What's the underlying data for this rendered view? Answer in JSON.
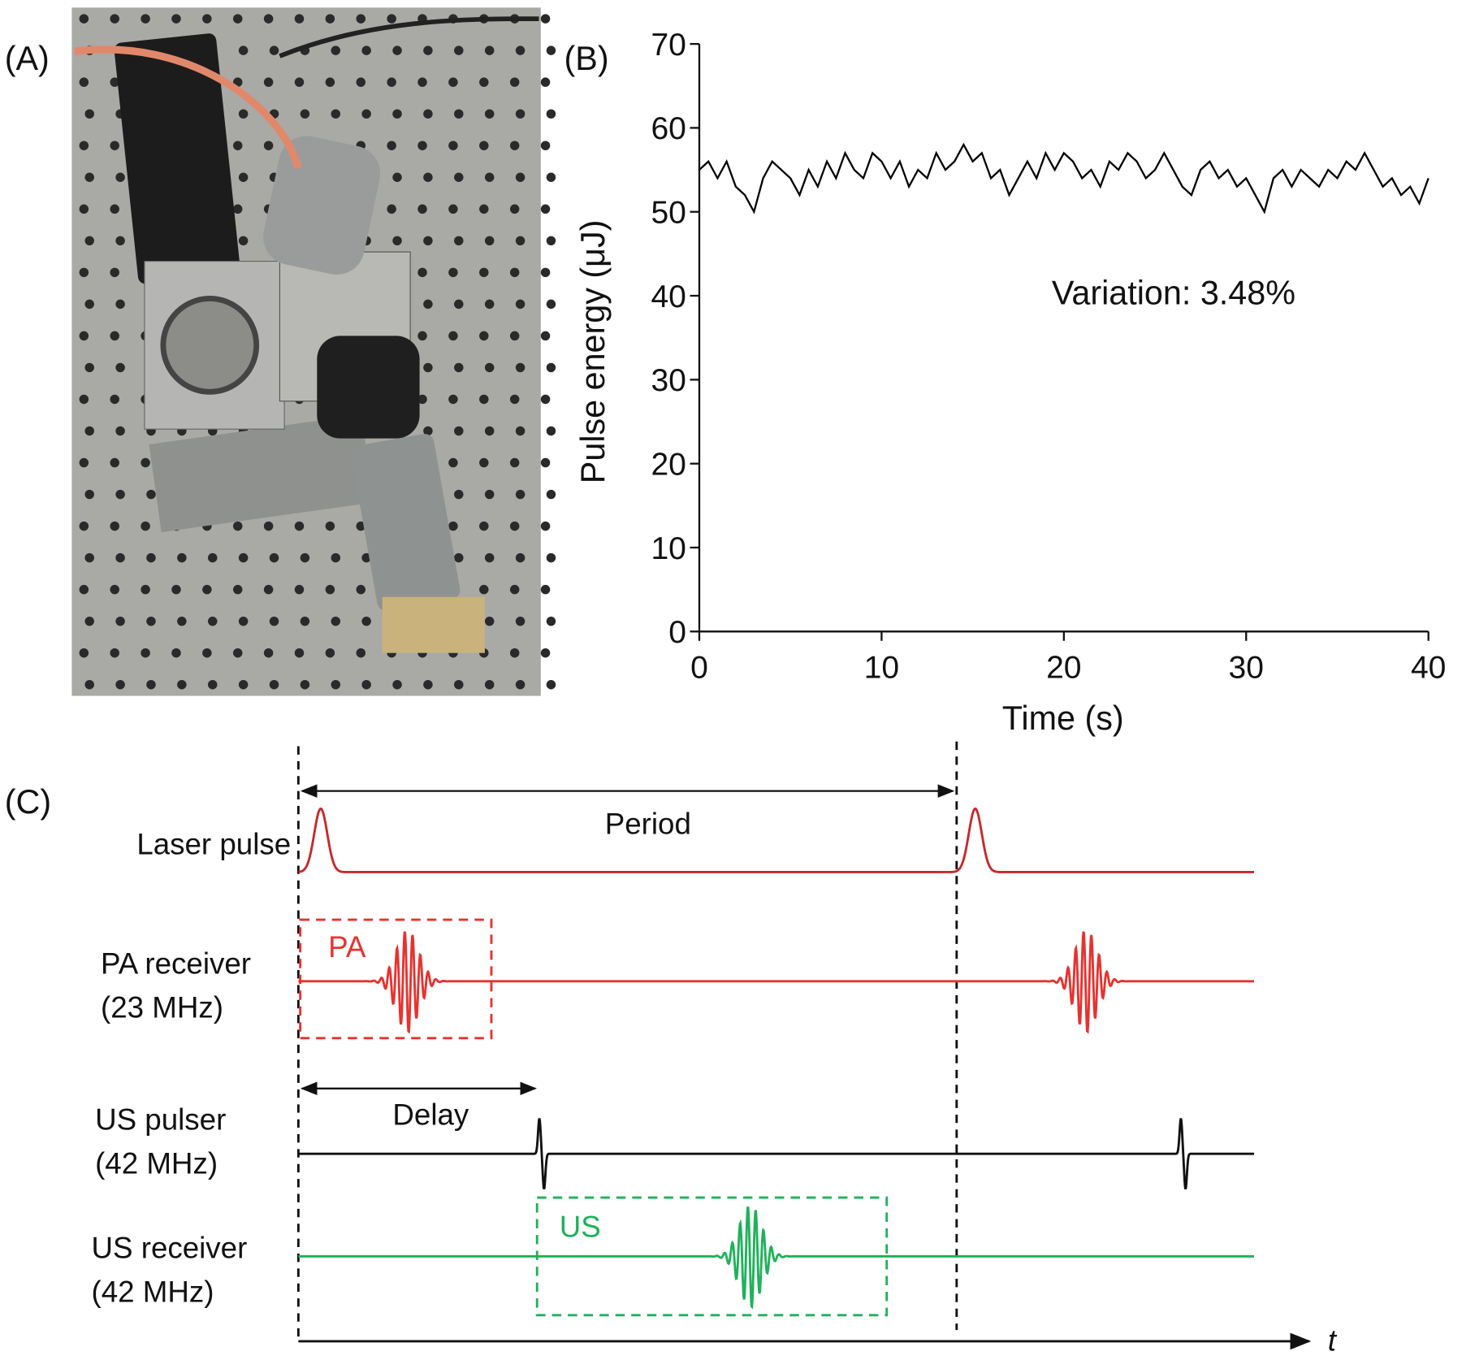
{
  "panels": {
    "a": "(A)",
    "b": "(B)",
    "c": "(C)"
  },
  "chart_data": {
    "type": "line",
    "y_label": "Pulse energy (μJ)",
    "x_label": "Time (s)",
    "annotation": "Variation: 3.48%",
    "color": "#000000",
    "xlim": [
      0,
      40
    ],
    "ylim": [
      0,
      70
    ],
    "xticks": [
      0,
      10,
      20,
      30,
      40
    ],
    "yticks": [
      0,
      10,
      20,
      30,
      40,
      50,
      60,
      70
    ],
    "x": [
      0,
      0.5,
      1,
      1.5,
      2,
      2.5,
      3,
      3.5,
      4,
      4.5,
      5,
      5.5,
      6,
      6.5,
      7,
      7.5,
      8,
      8.5,
      9,
      9.5,
      10,
      10.5,
      11,
      11.5,
      12,
      12.5,
      13,
      13.5,
      14,
      14.5,
      15,
      15.5,
      16,
      16.5,
      17,
      17.5,
      18,
      18.5,
      19,
      19.5,
      20,
      20.5,
      21,
      21.5,
      22,
      22.5,
      23,
      23.5,
      24,
      24.5,
      25,
      25.5,
      26,
      26.5,
      27,
      27.5,
      28,
      28.5,
      29,
      29.5,
      30,
      30.5,
      31,
      31.5,
      32,
      32.5,
      33,
      33.5,
      34,
      34.5,
      35,
      35.5,
      36,
      36.5,
      37,
      37.5,
      38,
      38.5,
      39,
      39.5,
      40
    ],
    "values": [
      55,
      56,
      54,
      56,
      53,
      52,
      50,
      54,
      56,
      55,
      54,
      52,
      55,
      53,
      56,
      54,
      57,
      55,
      54,
      57,
      56,
      54,
      56,
      53,
      55,
      54,
      57,
      55,
      56,
      58,
      56,
      57,
      54,
      55,
      52,
      54,
      56,
      54,
      57,
      55,
      57,
      56,
      54,
      55,
      53,
      56,
      55,
      57,
      56,
      54,
      55,
      57,
      55,
      53,
      52,
      55,
      56,
      54,
      55,
      53,
      54,
      52,
      50,
      54,
      55,
      53,
      55,
      54,
      53,
      55,
      54,
      56,
      55,
      57,
      55,
      53,
      54,
      52,
      53,
      51,
      54
    ]
  },
  "diagram": {
    "laser": "Laser pulse",
    "period": "Period",
    "pa_receiver": "PA receiver",
    "pa_freq": "(23 MHz)",
    "pa": "PA",
    "us_pulser": "US pulser",
    "us_pulser_freq": "(42 MHz)",
    "delay": "Delay",
    "us_receiver": "US receiver",
    "us_receiver_freq": "(42 MHz)",
    "us": "US",
    "t": "t"
  }
}
